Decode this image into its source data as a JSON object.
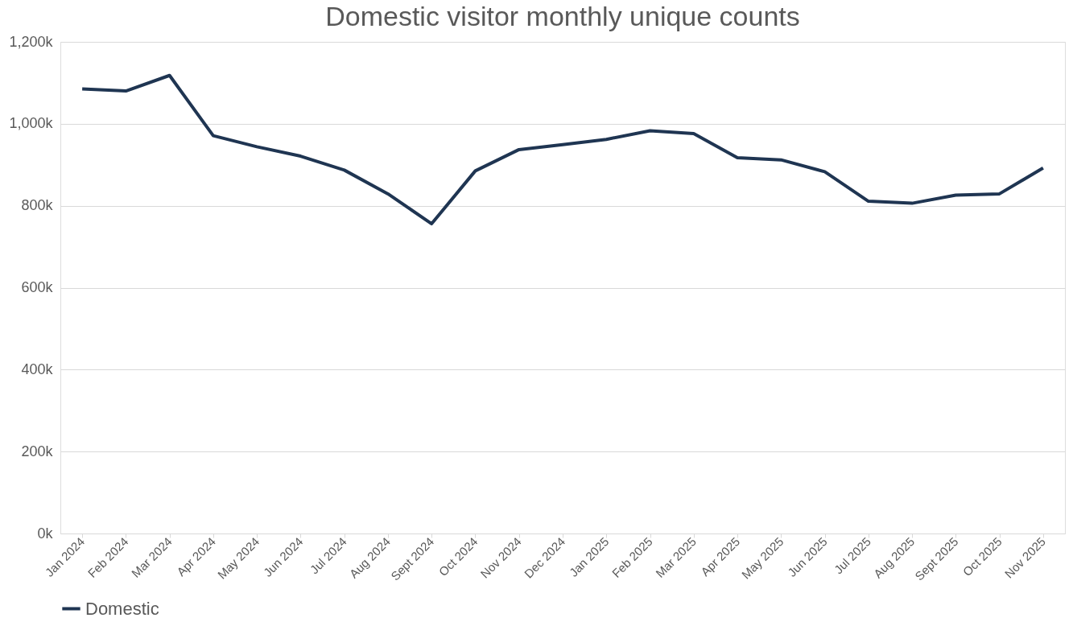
{
  "chart_data": {
    "type": "line",
    "title": "Domestic visitor monthly unique counts",
    "categories": [
      "Jan 2024",
      "Feb 2024",
      "Mar 2024",
      "Apr 2024",
      "May 2024",
      "Jun 2024",
      "Jul 2024",
      "Aug 2024",
      "Sept 2024",
      "Oct 2024",
      "Nov 2024",
      "Dec 2024",
      "Jan 2025",
      "Feb 2025",
      "Mar 2025",
      "Apr 2025",
      "May 2025",
      "Jun 2025",
      "Jul 2025",
      "Aug 2025",
      "Sept 2025",
      "Oct 2025",
      "Nov 2025"
    ],
    "series": [
      {
        "name": "Domestic",
        "color": "#1f3552",
        "values": [
          1085000,
          1080000,
          1118000,
          971000,
          944000,
          921000,
          887000,
          829000,
          756000,
          885000,
          937000,
          949000,
          962000,
          983000,
          976000,
          917000,
          912000,
          883000,
          811000,
          806000,
          826000,
          829000,
          892000
        ]
      }
    ],
    "ylim": [
      0,
      1200000
    ],
    "yticks": [
      {
        "value": 0,
        "label": "0k"
      },
      {
        "value": 200000,
        "label": "200k"
      },
      {
        "value": 400000,
        "label": "400k"
      },
      {
        "value": 600000,
        "label": "600k"
      },
      {
        "value": 800000,
        "label": "800k"
      },
      {
        "value": 1000000,
        "label": "1,000k"
      },
      {
        "value": 1200000,
        "label": "1,200k"
      }
    ],
    "grid": "y",
    "legend": "bottom",
    "marker": "none",
    "line_style": "solid"
  }
}
